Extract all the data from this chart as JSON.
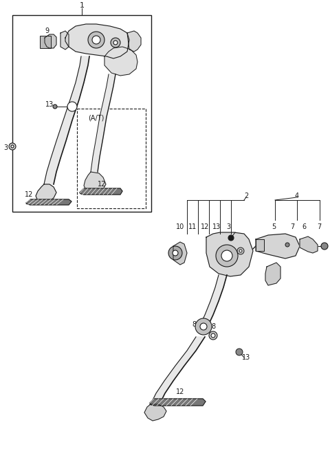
{
  "bg_color": "#ffffff",
  "line_color": "#1a1a1a",
  "figsize": [
    4.8,
    6.56
  ],
  "dpi": 100
}
